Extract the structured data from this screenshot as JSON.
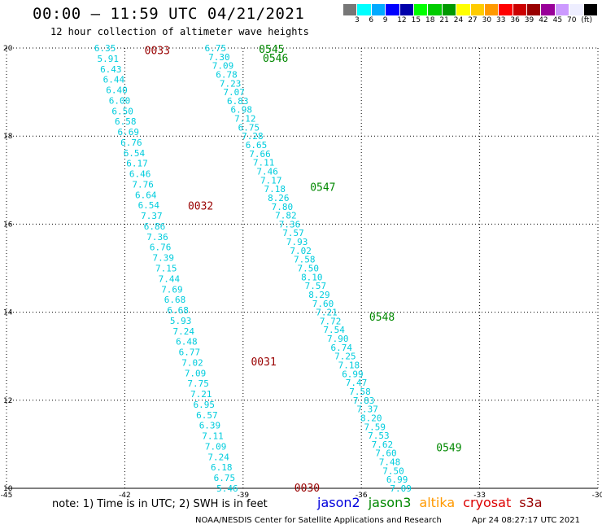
{
  "header": {
    "title": "00:00 — 11:59 UTC 04/21/2021",
    "subtitle": "12 hour collection of altimeter wave heights"
  },
  "colorbar": {
    "colors": [
      "#777777",
      "#00ffff",
      "#00aaff",
      "#0000ff",
      "#0000aa",
      "#00ff00",
      "#00cc00",
      "#009900",
      "#ffff00",
      "#ffcc00",
      "#ff9900",
      "#ff0000",
      "#cc0000",
      "#990000",
      "#990099",
      "#cc99ff",
      "#eeeeff",
      "#000000"
    ],
    "labels": [
      "3",
      "6",
      "9",
      "12",
      "15",
      "18",
      "21",
      "24",
      "27",
      "30",
      "33",
      "36",
      "39",
      "42",
      "45",
      "70",
      "(ft)"
    ]
  },
  "note": "note: 1) Time is in UTC; 2) SWH is in feet",
  "legend": [
    {
      "name": "jason2",
      "color": "#0000dd"
    },
    {
      "name": "jason3",
      "color": "#008800"
    },
    {
      "name": "altika",
      "color": "#ff9900"
    },
    {
      "name": "cryosat",
      "color": "#dd0000"
    },
    {
      "name": "s3a",
      "color": "#990000"
    }
  ],
  "footer": "NOAA/NESDIS Center for Satellite Applications and Research",
  "timestamp": "Apr 24 08:27:17 UTC 2021",
  "chart_data": {
    "type": "scatter",
    "xlim": [
      -45,
      -30
    ],
    "ylim": [
      10,
      20
    ],
    "x_ticks": [
      "-45",
      "-42",
      "-39",
      "-36",
      "-33",
      "-30"
    ],
    "y_ticks": [
      "10",
      "12",
      "14",
      "16",
      "18",
      "20"
    ],
    "grid": true,
    "series": [
      {
        "name": "s3a",
        "color": "#00ccdd",
        "start": [
          -42.5,
          20
        ],
        "end": [
          -39.4,
          10
        ],
        "values": [
          "6.35",
          "5.91",
          "6.43",
          "6.44",
          "6.40",
          "6.00",
          "6.50",
          "6.58",
          "6.69",
          "6.76",
          "6.54",
          "6.17",
          "6.46",
          "7.76",
          "6.64",
          "6.54",
          "7.37",
          "6.86",
          "7.36",
          "6.76",
          "7.39",
          "7.15",
          "7.44",
          "7.69",
          "6.68",
          "6.68",
          "5.93",
          "7.24",
          "6.48",
          "6.77",
          "7.02",
          "7.09",
          "7.75",
          "7.21",
          "6.95",
          "6.57",
          "6.39",
          "7.11",
          "7.09",
          "7.24",
          "6.18",
          "6.75",
          "5.46"
        ],
        "time_labels": [
          {
            "text": "0033",
            "x": -41.5,
            "y": 19.95
          },
          {
            "text": "0032",
            "x": -40.4,
            "y": 16.42
          },
          {
            "text": "0031",
            "x": -38.8,
            "y": 12.88
          },
          {
            "text": "0030",
            "x": -37.7,
            "y": 10.02
          }
        ]
      },
      {
        "name": "jason3",
        "color": "#00ccdd",
        "start": [
          -39.7,
          20
        ],
        "end": [
          -35.0,
          10
        ],
        "values": [
          "6.75",
          "7.30",
          "7.09",
          "6.78",
          "7.23",
          "7.07",
          "6.83",
          "6.98",
          "7.12",
          "6.75",
          "7.28",
          "6.65",
          "7.66",
          "7.11",
          "7.46",
          "7.17",
          "7.18",
          "8.26",
          "7.80",
          "7.82",
          "7.36",
          "7.57",
          "7.93",
          "7.02",
          "7.58",
          "7.50",
          "8.10",
          "7.57",
          "8.29",
          "7.60",
          "7.21",
          "7.72",
          "7.54",
          "7.90",
          "6.74",
          "7.25",
          "7.18",
          "6.99",
          "7.47",
          "7.58",
          "7.83",
          "7.37",
          "8.20",
          "7.59",
          "7.53",
          "7.62",
          "7.60",
          "7.48",
          "7.50",
          "6.99",
          "7.09"
        ],
        "time_labels": [
          {
            "text": "0545",
            "x": -38.6,
            "y": 19.98
          },
          {
            "text": "0546",
            "x": -38.5,
            "y": 19.78
          },
          {
            "text": "0547",
            "x": -37.3,
            "y": 16.85
          },
          {
            "text": "0548",
            "x": -35.8,
            "y": 13.9
          },
          {
            "text": "0549",
            "x": -34.1,
            "y": 10.93
          }
        ]
      }
    ]
  }
}
